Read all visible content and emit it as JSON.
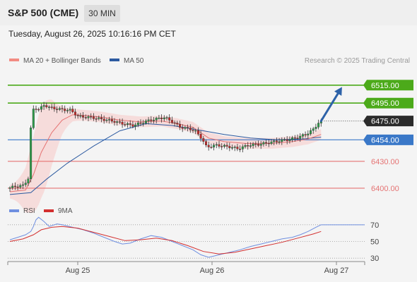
{
  "header": {
    "title": "S&P 500 (CME)",
    "timeframe": "30 MIN",
    "datetime": "Tuesday, August 26, 2025 10:16:16 PM CET"
  },
  "legend": {
    "items": [
      {
        "label": "MA 20 + Bollinger Bands",
        "color": "#f28b82"
      },
      {
        "label": "MA 50",
        "color": "#2c5aa0"
      }
    ],
    "credit": "Research © 2025 Trading Central"
  },
  "colors": {
    "resistance": "#4caa1a",
    "support": "#e57373",
    "pivot": "#3a78c8",
    "last": "#2b2b2b",
    "arrow": "#2d62a8",
    "bull": "#2e9e4a",
    "bear": "#c62828",
    "rsi": "#6f8fe0",
    "rsi_ma": "#d32f2f"
  },
  "chart_data": [
    {
      "type": "line",
      "panel": "price",
      "y_range": [
        6374,
        6529
      ],
      "x_ticks": [
        "Aug 25",
        "Aug 26",
        "Aug 27"
      ],
      "levels": [
        {
          "value": 6515.0,
          "label": "6515.00",
          "kind": "resistance"
        },
        {
          "value": 6495.0,
          "label": "6495.00",
          "kind": "resistance"
        },
        {
          "value": 6475.0,
          "label": "6475.00",
          "kind": "last"
        },
        {
          "value": 6454.0,
          "label": "6454.00",
          "kind": "pivot"
        },
        {
          "value": 6430.0,
          "label": "6430.00",
          "kind": "support"
        },
        {
          "value": 6400.0,
          "label": "6400.00",
          "kind": "support"
        }
      ],
      "price_path": [
        [
          0,
          6400
        ],
        [
          3,
          6402
        ],
        [
          6,
          6403
        ],
        [
          8,
          6412
        ],
        [
          9,
          6480
        ],
        [
          10,
          6490
        ],
        [
          12,
          6488
        ],
        [
          14,
          6493
        ],
        [
          16,
          6490
        ],
        [
          20,
          6488
        ],
        [
          24,
          6487
        ],
        [
          27,
          6480
        ],
        [
          32,
          6479
        ],
        [
          36,
          6477
        ],
        [
          40,
          6475
        ],
        [
          44,
          6472
        ],
        [
          48,
          6470
        ],
        [
          52,
          6474
        ],
        [
          56,
          6477
        ],
        [
          60,
          6479
        ],
        [
          63,
          6474
        ],
        [
          66,
          6468
        ],
        [
          70,
          6466
        ],
        [
          72,
          6463
        ],
        [
          74,
          6456
        ],
        [
          76,
          6446
        ],
        [
          80,
          6448
        ],
        [
          85,
          6446
        ],
        [
          88,
          6444
        ],
        [
          92,
          6448
        ],
        [
          96,
          6449
        ],
        [
          100,
          6451
        ],
        [
          104,
          6453
        ],
        [
          107,
          6454
        ],
        [
          110,
          6456
        ],
        [
          114,
          6460
        ],
        [
          117,
          6466
        ],
        [
          119,
          6474
        ]
      ],
      "ma20_path": [
        [
          0,
          6396
        ],
        [
          6,
          6398
        ],
        [
          9,
          6415
        ],
        [
          12,
          6440
        ],
        [
          16,
          6462
        ],
        [
          20,
          6476
        ],
        [
          24,
          6482
        ],
        [
          30,
          6481
        ],
        [
          36,
          6479
        ],
        [
          42,
          6476
        ],
        [
          50,
          6474
        ],
        [
          58,
          6475
        ],
        [
          64,
          6472
        ],
        [
          70,
          6468
        ],
        [
          76,
          6456
        ],
        [
          82,
          6452
        ],
        [
          90,
          6450
        ],
        [
          100,
          6450
        ],
        [
          108,
          6452
        ],
        [
          114,
          6455
        ],
        [
          119,
          6460
        ]
      ],
      "ma50_path": [
        [
          0,
          6393
        ],
        [
          8,
          6395
        ],
        [
          14,
          6410
        ],
        [
          22,
          6428
        ],
        [
          32,
          6447
        ],
        [
          42,
          6464
        ],
        [
          52,
          6472
        ],
        [
          62,
          6470
        ],
        [
          72,
          6465
        ],
        [
          82,
          6460
        ],
        [
          92,
          6456
        ],
        [
          102,
          6454
        ],
        [
          112,
          6455
        ],
        [
          119,
          6457
        ]
      ],
      "forecast_arrow": {
        "from": [
          119,
          6475
        ],
        "to": [
          127,
          6513
        ]
      }
    },
    {
      "type": "line",
      "panel": "rsi",
      "y_range": [
        20,
        80
      ],
      "y_ticks": [
        70,
        50,
        30
      ],
      "series": [
        {
          "name": "RSI",
          "values": [
            [
              0,
              52
            ],
            [
              3,
              55
            ],
            [
              6,
              58
            ],
            [
              8,
              62
            ],
            [
              9,
              68
            ],
            [
              10,
              76
            ],
            [
              11,
              79
            ],
            [
              13,
              74
            ],
            [
              15,
              68
            ],
            [
              18,
              71
            ],
            [
              20,
              70
            ],
            [
              24,
              67
            ],
            [
              28,
              64
            ],
            [
              32,
              60
            ],
            [
              36,
              55
            ],
            [
              40,
              50
            ],
            [
              43,
              47
            ],
            [
              46,
              48
            ],
            [
              50,
              53
            ],
            [
              54,
              57
            ],
            [
              58,
              55
            ],
            [
              62,
              50
            ],
            [
              66,
              45
            ],
            [
              70,
              40
            ],
            [
              73,
              34
            ],
            [
              76,
              31
            ],
            [
              80,
              34
            ],
            [
              84,
              37
            ],
            [
              88,
              40
            ],
            [
              92,
              44
            ],
            [
              96,
              47
            ],
            [
              100,
              50
            ],
            [
              104,
              53
            ],
            [
              108,
              55
            ],
            [
              111,
              58
            ],
            [
              114,
              62
            ],
            [
              117,
              67
            ],
            [
              119,
              70
            ]
          ]
        },
        {
          "name": "9MA",
          "values": [
            [
              0,
              50
            ],
            [
              5,
              53
            ],
            [
              9,
              58
            ],
            [
              12,
              64
            ],
            [
              16,
              67
            ],
            [
              20,
              68
            ],
            [
              26,
              66
            ],
            [
              32,
              61
            ],
            [
              38,
              56
            ],
            [
              44,
              51
            ],
            [
              50,
              52
            ],
            [
              56,
              54
            ],
            [
              62,
              51
            ],
            [
              68,
              45
            ],
            [
              74,
              38
            ],
            [
              80,
              35
            ],
            [
              86,
              37
            ],
            [
              92,
              41
            ],
            [
              98,
              45
            ],
            [
              104,
              49
            ],
            [
              110,
              54
            ],
            [
              116,
              59
            ],
            [
              119,
              62
            ]
          ]
        }
      ]
    }
  ]
}
